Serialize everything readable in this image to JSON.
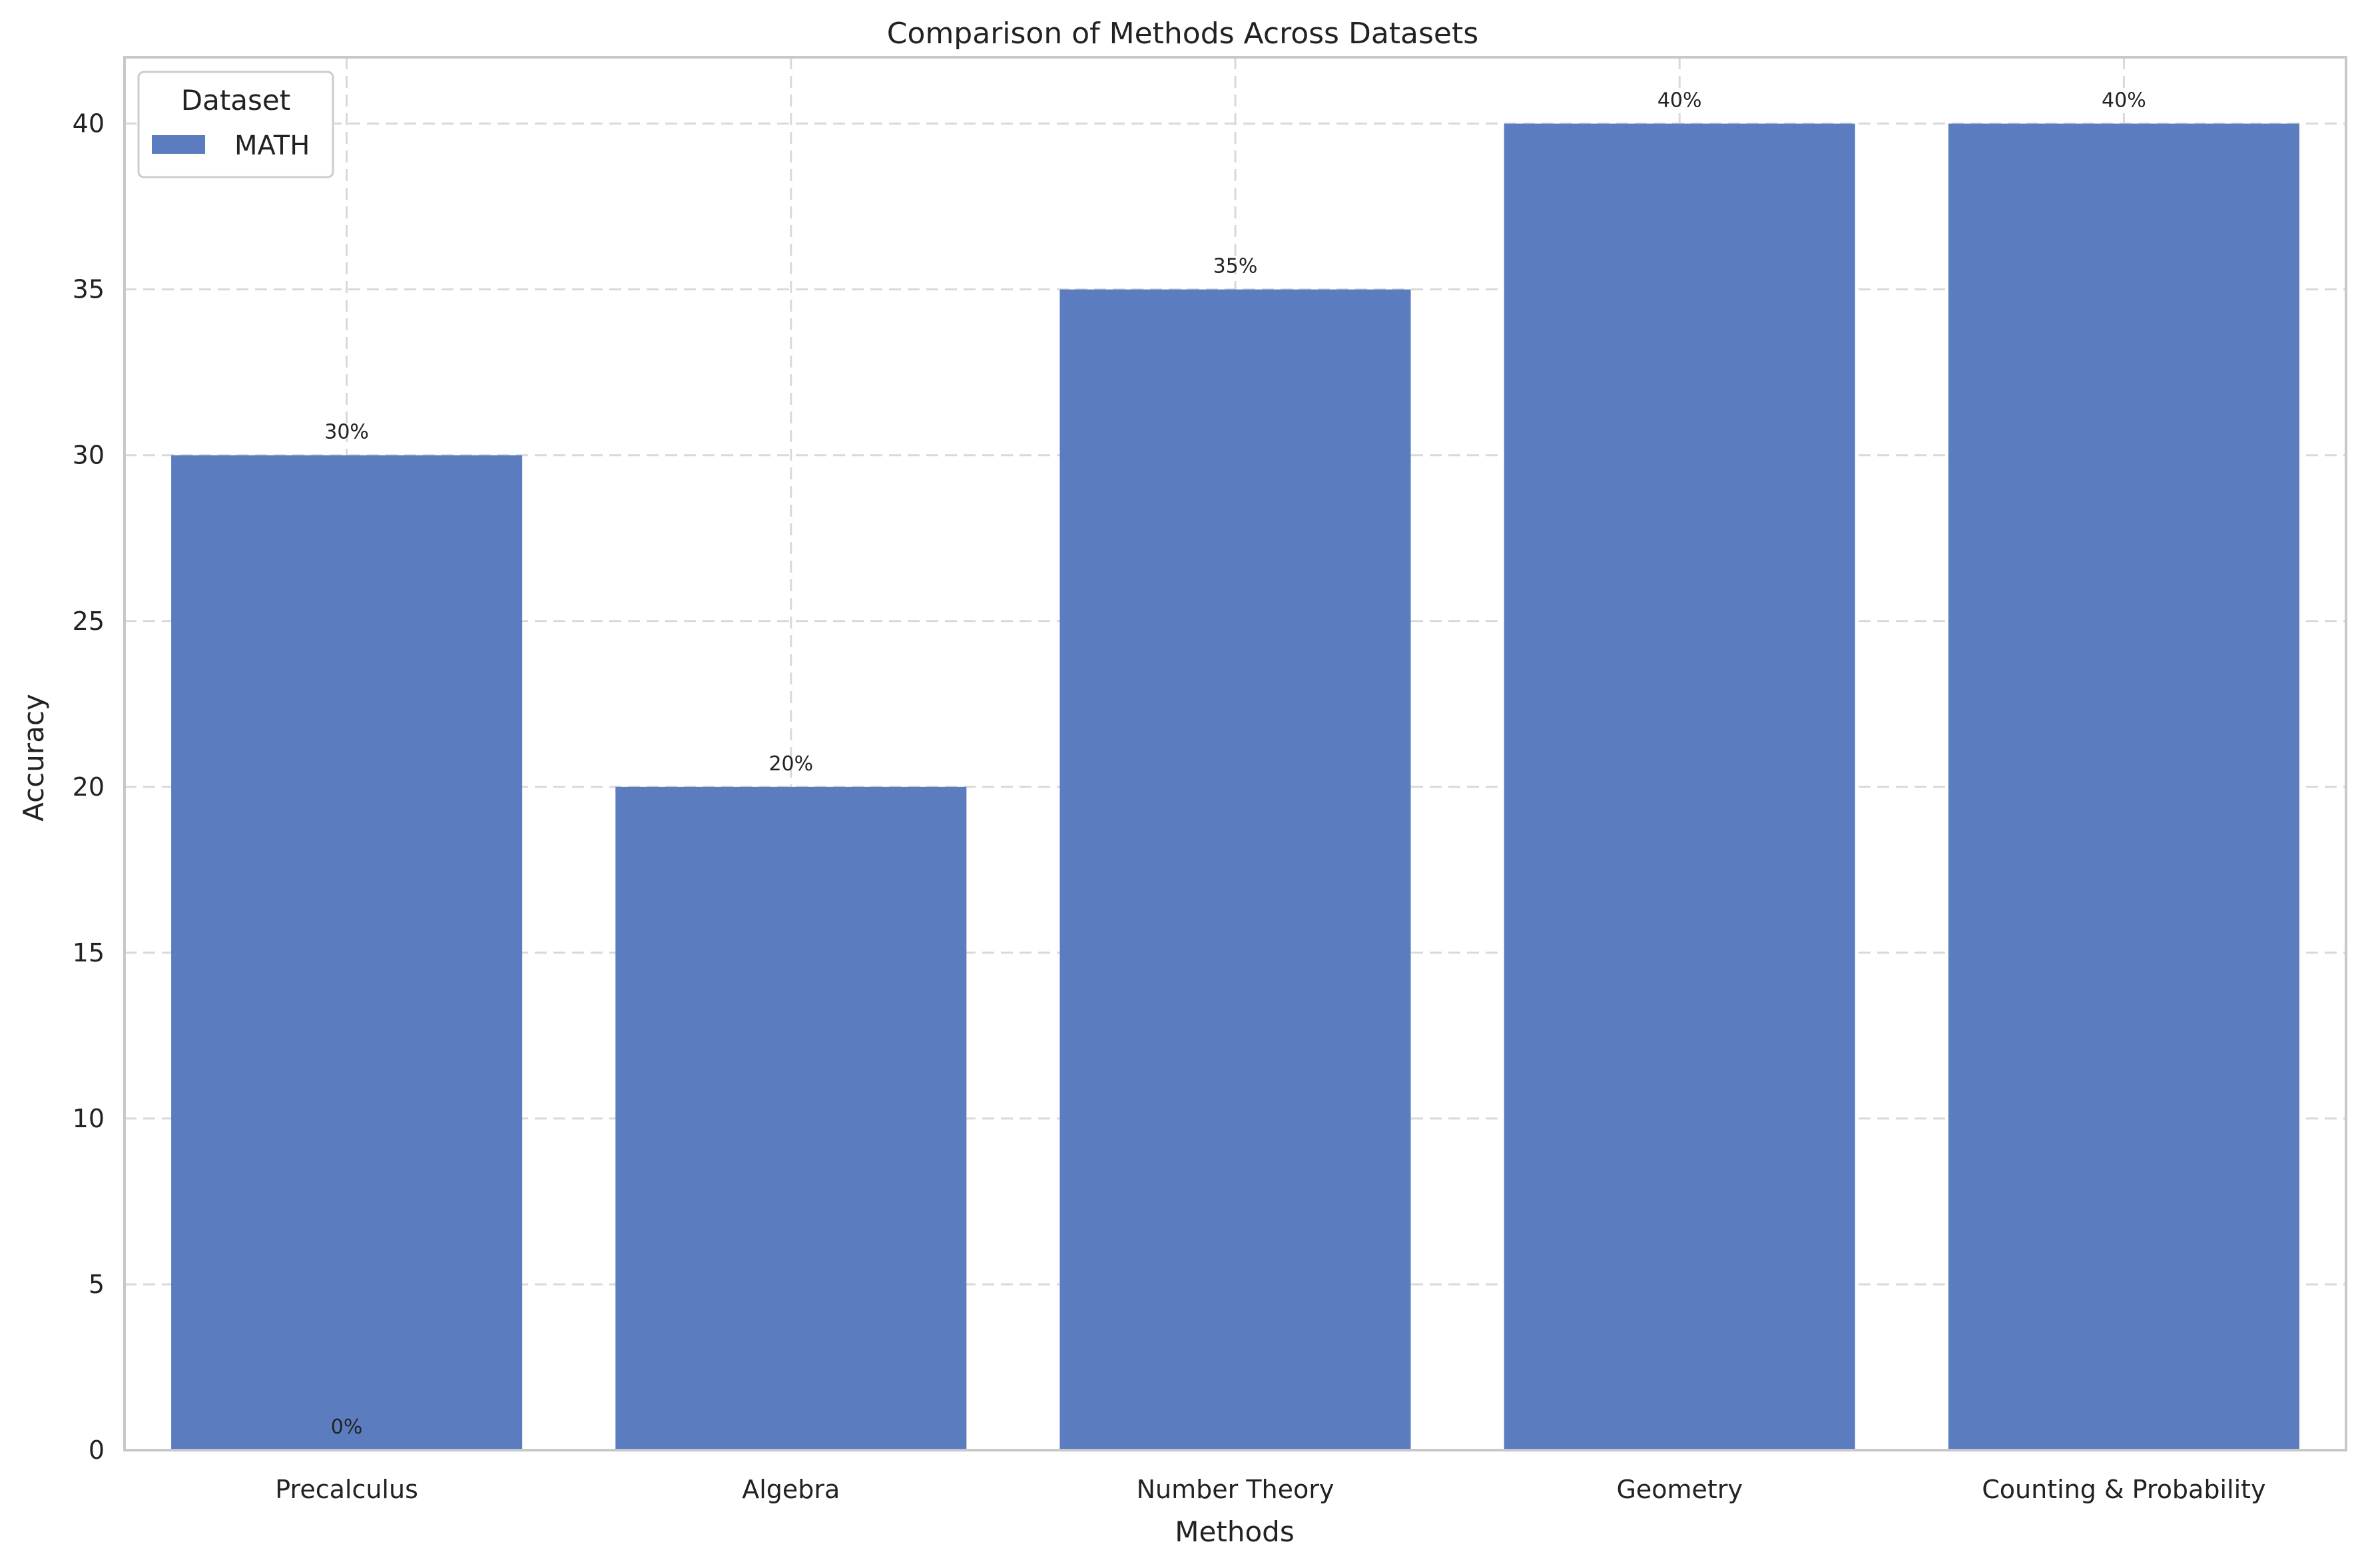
{
  "chart_data": {
    "type": "bar",
    "title": "Comparison of Methods Across Datasets",
    "xlabel": "Methods",
    "ylabel": "Accuracy",
    "categories": [
      "Precalculus",
      "Algebra",
      "Number Theory",
      "Geometry",
      "Counting & Probability"
    ],
    "series": [
      {
        "name": "MATH",
        "values": [
          30,
          20,
          35,
          40,
          40
        ]
      }
    ],
    "data_labels": [
      "30%",
      "20%",
      "35%",
      "40%",
      "40%"
    ],
    "extra_labels": [
      {
        "category": "Precalculus",
        "value": 0,
        "text": "0%"
      }
    ],
    "yticks": [
      "0",
      "5",
      "10",
      "15",
      "20",
      "25",
      "30",
      "35",
      "40"
    ],
    "ylim": [
      0,
      42
    ],
    "grid": true,
    "legend": {
      "title": "Dataset",
      "position": "top-left"
    },
    "colors": {
      "bar": "#5b7dbf",
      "grid": "#d9d9d9",
      "frame": "#c8c8c8"
    }
  }
}
